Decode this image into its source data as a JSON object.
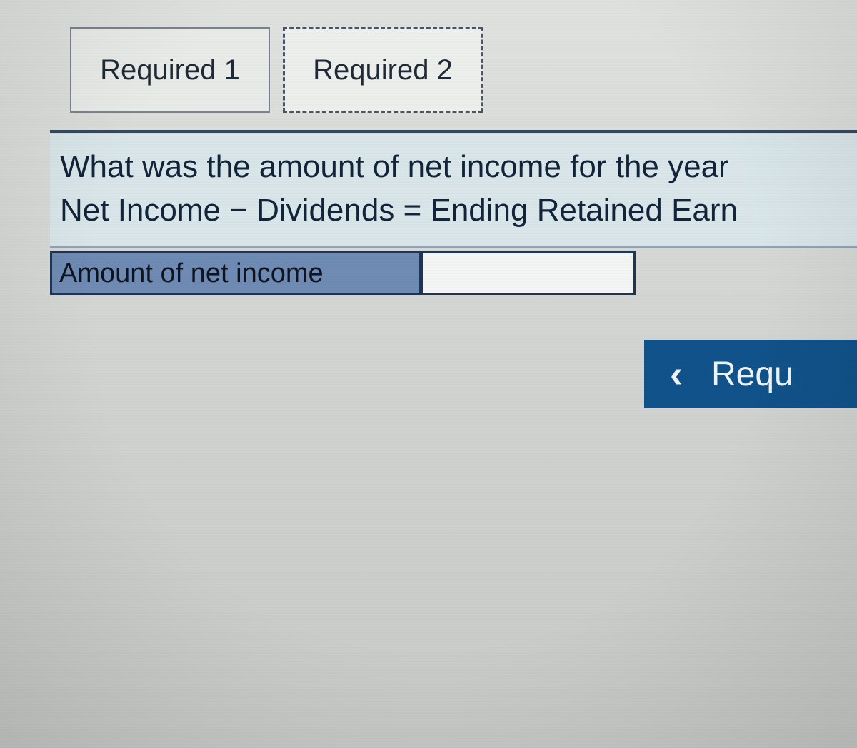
{
  "colors": {
    "page_bg_top": "#e0e2e0",
    "page_bg_bottom": "#c8cac8",
    "tab_bg": "#e9ebe9",
    "tab_active_bg": "#edefed",
    "tab_border": "#7a8392",
    "tab_active_border": "#4a5564",
    "divider": "#2f4a66",
    "question_bg": "#d9e6ea",
    "question_text": "#12243a",
    "label_bg": "#6f8bb4",
    "cell_border": "#1e3556",
    "input_bg": "#f4f6f5",
    "nav_bg": "#105289",
    "nav_text": "#eef4f9"
  },
  "tabs": [
    {
      "label": "Required 1",
      "active": false
    },
    {
      "label": "Required 2",
      "active": true
    }
  ],
  "question": {
    "line1": "What was the amount of net income for the year",
    "line2": "Net Income − Dividends = Ending Retained Earn",
    "fontsize": 44
  },
  "answer": {
    "label": "Amount of net income",
    "value": "",
    "label_fontsize": 38
  },
  "nav": {
    "prev_label": "Requ",
    "chevron": "‹"
  }
}
